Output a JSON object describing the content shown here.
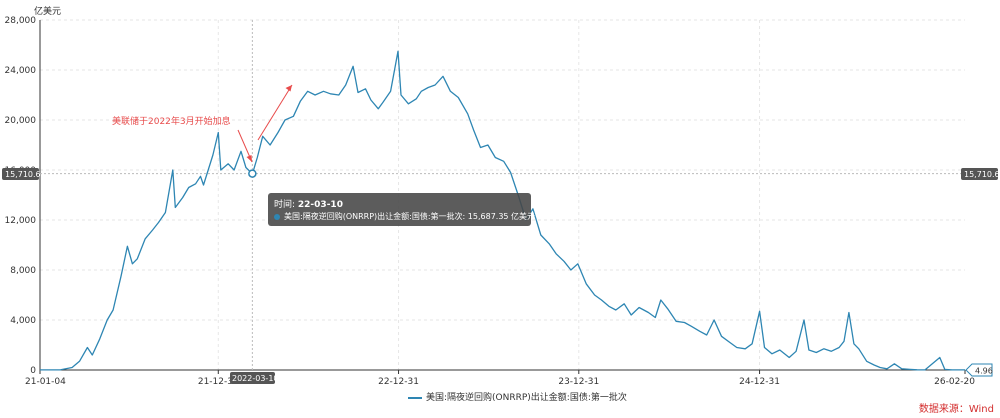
{
  "chart_data": {
    "type": "line",
    "unit_label": "亿美元",
    "y_ticks": [
      "0",
      "4,000",
      "8,000",
      "12,000",
      "16,000",
      "20,000",
      "24,000",
      "28,000"
    ],
    "ylim": [
      0,
      28000
    ],
    "x_ticks": [
      "21-01-04",
      "21-12-31",
      "22-12-31",
      "23-12-31",
      "24-12-31",
      "26-02-20"
    ],
    "series": [
      {
        "name": "美国:隔夜逆回购(ONRRP)出让金额:国债:第一批次",
        "points": [
          [
            "2021-01-04",
            5
          ],
          [
            "2021-02-15",
            20
          ],
          [
            "2021-03-10",
            200
          ],
          [
            "2021-03-25",
            700
          ],
          [
            "2021-04-10",
            1800
          ],
          [
            "2021-04-20",
            1200
          ],
          [
            "2021-05-05",
            2500
          ],
          [
            "2021-05-20",
            4000
          ],
          [
            "2021-06-01",
            4800
          ],
          [
            "2021-06-17",
            7500
          ],
          [
            "2021-06-30",
            9900
          ],
          [
            "2021-07-10",
            8500
          ],
          [
            "2021-07-20",
            8900
          ],
          [
            "2021-08-05",
            10500
          ],
          [
            "2021-08-20",
            11200
          ],
          [
            "2021-09-01",
            11800
          ],
          [
            "2021-09-15",
            12600
          ],
          [
            "2021-09-30",
            16000
          ],
          [
            "2021-10-05",
            13000
          ],
          [
            "2021-10-20",
            13800
          ],
          [
            "2021-11-01",
            14600
          ],
          [
            "2021-11-15",
            14900
          ],
          [
            "2021-11-25",
            15500
          ],
          [
            "2021-12-01",
            14800
          ],
          [
            "2021-12-20",
            17200
          ],
          [
            "2021-12-31",
            19000
          ],
          [
            "2022-01-05",
            16000
          ],
          [
            "2022-01-20",
            16500
          ],
          [
            "2022-02-01",
            16000
          ],
          [
            "2022-02-15",
            17500
          ],
          [
            "2022-02-25",
            16200
          ],
          [
            "2022-03-10",
            15687
          ],
          [
            "2022-03-20",
            17000
          ],
          [
            "2022-03-31",
            18700
          ],
          [
            "2022-04-15",
            18000
          ],
          [
            "2022-05-01",
            19000
          ],
          [
            "2022-05-15",
            20000
          ],
          [
            "2022-06-01",
            20300
          ],
          [
            "2022-06-15",
            21500
          ],
          [
            "2022-06-30",
            22300
          ],
          [
            "2022-07-15",
            22000
          ],
          [
            "2022-08-01",
            22300
          ],
          [
            "2022-08-15",
            22100
          ],
          [
            "2022-09-01",
            22000
          ],
          [
            "2022-09-15",
            22800
          ],
          [
            "2022-09-30",
            24300
          ],
          [
            "2022-10-10",
            22200
          ],
          [
            "2022-10-25",
            22500
          ],
          [
            "2022-11-05",
            21600
          ],
          [
            "2022-11-20",
            20900
          ],
          [
            "2022-12-01",
            21500
          ],
          [
            "2022-12-15",
            22300
          ],
          [
            "2022-12-30",
            25500
          ],
          [
            "2023-01-05",
            22000
          ],
          [
            "2023-01-20",
            21300
          ],
          [
            "2023-02-05",
            21700
          ],
          [
            "2023-02-15",
            22300
          ],
          [
            "2023-03-01",
            22600
          ],
          [
            "2023-03-15",
            22800
          ],
          [
            "2023-03-31",
            23500
          ],
          [
            "2023-04-15",
            22300
          ],
          [
            "2023-05-01",
            21800
          ],
          [
            "2023-05-20",
            20500
          ],
          [
            "2023-06-01",
            19200
          ],
          [
            "2023-06-15",
            17800
          ],
          [
            "2023-06-30",
            18000
          ],
          [
            "2023-07-15",
            17000
          ],
          [
            "2023-08-01",
            16700
          ],
          [
            "2023-08-15",
            15800
          ],
          [
            "2023-09-01",
            13800
          ],
          [
            "2023-09-15",
            12000
          ],
          [
            "2023-09-29",
            12900
          ],
          [
            "2023-10-15",
            10800
          ],
          [
            "2023-11-01",
            10100
          ],
          [
            "2023-11-15",
            9300
          ],
          [
            "2023-12-01",
            8700
          ],
          [
            "2023-12-15",
            8000
          ],
          [
            "2023-12-29",
            8500
          ],
          [
            "2024-01-15",
            6900
          ],
          [
            "2024-02-01",
            6000
          ],
          [
            "2024-02-15",
            5600
          ],
          [
            "2024-03-01",
            5100
          ],
          [
            "2024-03-15",
            4800
          ],
          [
            "2024-04-01",
            5300
          ],
          [
            "2024-04-15",
            4400
          ],
          [
            "2024-05-01",
            5000
          ],
          [
            "2024-05-20",
            4600
          ],
          [
            "2024-06-03",
            4200
          ],
          [
            "2024-06-14",
            5600
          ],
          [
            "2024-06-28",
            4900
          ],
          [
            "2024-07-15",
            3900
          ],
          [
            "2024-08-01",
            3800
          ],
          [
            "2024-08-15",
            3500
          ],
          [
            "2024-09-01",
            3100
          ],
          [
            "2024-09-15",
            2800
          ],
          [
            "2024-09-30",
            4000
          ],
          [
            "2024-10-15",
            2700
          ],
          [
            "2024-11-01",
            2200
          ],
          [
            "2024-11-15",
            1800
          ],
          [
            "2024-12-02",
            1700
          ],
          [
            "2024-12-16",
            2100
          ],
          [
            "2024-12-31",
            4700
          ],
          [
            "2025-01-10",
            1800
          ],
          [
            "2025-01-25",
            1300
          ],
          [
            "2025-02-10",
            1600
          ],
          [
            "2025-03-01",
            1000
          ],
          [
            "2025-03-15",
            1500
          ],
          [
            "2025-03-31",
            4000
          ],
          [
            "2025-04-10",
            1600
          ],
          [
            "2025-04-25",
            1400
          ],
          [
            "2025-05-10",
            1700
          ],
          [
            "2025-05-25",
            1500
          ],
          [
            "2025-06-10",
            1800
          ],
          [
            "2025-06-20",
            2300
          ],
          [
            "2025-06-30",
            4600
          ],
          [
            "2025-07-10",
            2100
          ],
          [
            "2025-07-20",
            1700
          ],
          [
            "2025-08-05",
            700
          ],
          [
            "2025-08-20",
            400
          ],
          [
            "2025-09-01",
            200
          ],
          [
            "2025-09-15",
            100
          ],
          [
            "2025-09-30",
            500
          ],
          [
            "2025-10-15",
            100
          ],
          [
            "2025-11-01",
            50
          ],
          [
            "2025-11-15",
            20
          ],
          [
            "2025-12-01",
            10
          ],
          [
            "2025-12-31",
            1000
          ],
          [
            "2026-01-10",
            50
          ],
          [
            "2026-01-25",
            10
          ],
          [
            "2026-02-10",
            5
          ],
          [
            "2026-02-20",
            4.96
          ]
        ]
      }
    ],
    "annotation": "美联储于2022年3月开始加息",
    "crosshair": {
      "date": "2022-03-10",
      "date_label": "2022-03-10",
      "value_label": "15,710.61"
    },
    "last_value_label": "4.96",
    "grid": true,
    "legend_position": "bottom"
  },
  "tooltip": {
    "time_prefix": "时间: ",
    "time_value": "22-03-10",
    "series_label": "美国:隔夜逆回购(ONRRP)出让金额:国债:第一批次: 15,687.35  亿美元"
  },
  "legend": {
    "label": "美国:隔夜逆回购(ONRRP)出让金额:国债:第一批次"
  },
  "source": "数据来源：Wind",
  "colors": {
    "series": "#2e86b3",
    "annotation": "#e84b4b",
    "source": "#d32f2f"
  }
}
